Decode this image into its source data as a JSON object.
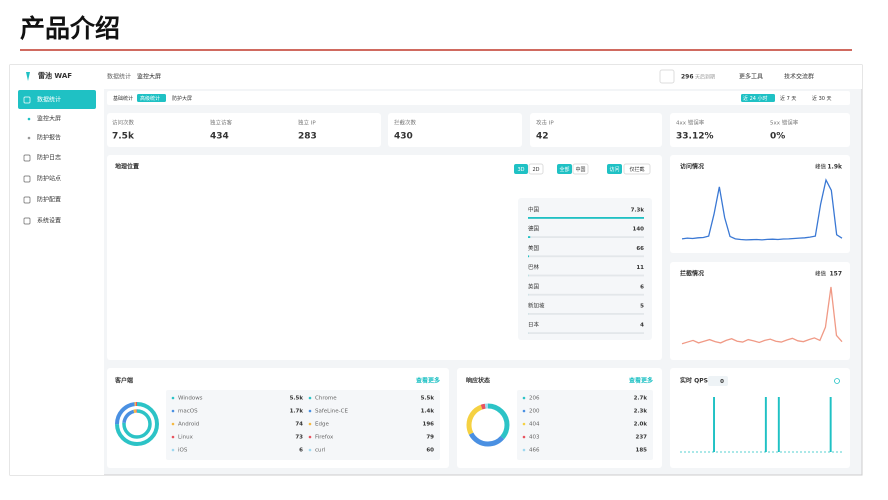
{
  "slide": {
    "title": "产品介绍"
  },
  "sidebar": {
    "logo": "雷池 WAF",
    "menu": [
      "数据统计",
      "监控大屏",
      "防护报告",
      "防护日志",
      "防护站点",
      "防护配置",
      "系统设置"
    ]
  },
  "topbar": {
    "breadcrumb": [
      "数据统计",
      "监控大屏"
    ],
    "days": "296",
    "days_label": "天后到期",
    "tools": "更多工具",
    "group": "技术交流群"
  },
  "tabs": {
    "items": [
      "基础统计",
      "高级统计",
      "防护大屏"
    ],
    "ranges": [
      "近 24 小时",
      "近 7 天",
      "近 30 天"
    ]
  },
  "stats": [
    {
      "label": "访问次数",
      "value": "7.5k"
    },
    {
      "label": "独立访客",
      "value": "434"
    },
    {
      "label": "独立 IP",
      "value": "283"
    },
    {
      "label": "拦截次数",
      "value": "430"
    },
    {
      "label": "攻击 IP",
      "value": "42"
    },
    {
      "label": "4xx 错误率",
      "value": "33.12%"
    },
    {
      "label": "5xx 错误率",
      "value": "0%"
    }
  ],
  "geo": {
    "title": "地理位置",
    "modes": [
      "3D",
      "2D"
    ],
    "scopes": [
      "全部",
      "中国"
    ],
    "filters": [
      "访问",
      "仅拦截"
    ],
    "countries": [
      {
        "name": "中国",
        "value": 7300,
        "label": "7.3k"
      },
      {
        "name": "德国",
        "value": 140
      },
      {
        "name": "美国",
        "value": 66
      },
      {
        "name": "巴林",
        "value": 11
      },
      {
        "name": "英国",
        "value": 6
      },
      {
        "name": "新加坡",
        "value": 5
      },
      {
        "name": "日本",
        "value": 4
      }
    ]
  },
  "visits": {
    "title": "访问情况",
    "peak_label": "峰值",
    "peak": "1.9k",
    "values": [
      180,
      200,
      190,
      210,
      220,
      260,
      900,
      1700,
      800,
      250,
      180,
      160,
      150,
      155,
      160,
      150,
      165,
      170,
      160,
      175,
      180,
      190,
      200,
      210,
      230,
      260,
      1200,
      1900,
      1600,
      300,
      200
    ]
  },
  "blocks": {
    "title": "拦截情况",
    "peak_label": "峰值",
    "peak": "157",
    "values": [
      20,
      24,
      28,
      22,
      26,
      30,
      25,
      22,
      28,
      32,
      26,
      24,
      30,
      27,
      23,
      28,
      31,
      26,
      24,
      29,
      33,
      27,
      25,
      30,
      34,
      28,
      60,
      157,
      40,
      25
    ]
  },
  "clients": {
    "title": "客户端",
    "more": "查看更多",
    "os": [
      {
        "name": "Windows",
        "value": 5500,
        "label": "5.5k",
        "color": "#2cc3c6"
      },
      {
        "name": "macOS",
        "value": 1700,
        "label": "1.7k",
        "color": "#4a90e2"
      },
      {
        "name": "Android",
        "value": 74,
        "color": "#f5b942"
      },
      {
        "name": "Linux",
        "value": 73,
        "color": "#e8545f"
      },
      {
        "name": "iOS",
        "value": 6,
        "color": "#9fd8f0"
      }
    ],
    "browsers": [
      {
        "name": "Chrome",
        "value": 5500,
        "label": "5.5k",
        "color": "#2cc3c6"
      },
      {
        "name": "SafeLine-CE",
        "value": 1400,
        "label": "1.4k",
        "color": "#4a90e2"
      },
      {
        "name": "Edge",
        "value": 196,
        "color": "#f5b942"
      },
      {
        "name": "Firefox",
        "value": 79,
        "color": "#e8545f"
      },
      {
        "name": "curl",
        "value": 60,
        "color": "#9fd8f0"
      }
    ]
  },
  "responses": {
    "title": "响应状态",
    "more": "查看更多",
    "codes": [
      {
        "name": "206",
        "value": 2700,
        "label": "2.7k",
        "color": "#2cc3c6"
      },
      {
        "name": "200",
        "value": 2300,
        "label": "2.3k",
        "color": "#4a90e2"
      },
      {
        "name": "404",
        "value": 2000,
        "label": "2.0k",
        "color": "#f5d142"
      },
      {
        "name": "403",
        "value": 237,
        "color": "#e8545f"
      },
      {
        "name": "466",
        "value": 185,
        "color": "#9fd8f0"
      }
    ]
  },
  "qps": {
    "title": "实时 QPS",
    "current": "0",
    "values": [
      0,
      0,
      0,
      0,
      0,
      0,
      0,
      0,
      0,
      0,
      1,
      0,
      0,
      0,
      0,
      0,
      0,
      0,
      0,
      0,
      0,
      0,
      0,
      0,
      0,
      0,
      1,
      0,
      0,
      0,
      1,
      0,
      0,
      0,
      0,
      0,
      0,
      0,
      0,
      0,
      0,
      0,
      0,
      0,
      0,
      0,
      1,
      0,
      0,
      0
    ]
  }
}
